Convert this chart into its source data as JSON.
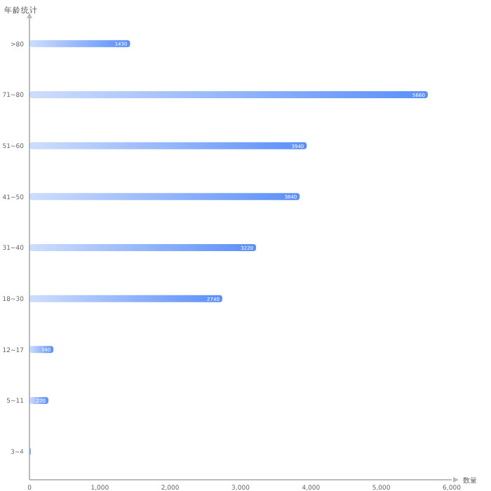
{
  "chart_data": {
    "type": "bar",
    "orientation": "horizontal",
    "ylabel": "年龄统计",
    "xlabel": "数量",
    "categories": [
      ">80",
      "71~80",
      "51~60",
      "41~50",
      "31~40",
      "18~30",
      "12~17",
      "5~11",
      "3~4"
    ],
    "values": [
      1430,
      5660,
      3940,
      3840,
      3220,
      2740,
      340,
      270,
      20
    ],
    "color": "#5b8ff9",
    "data_labels": true,
    "xlim": [
      0,
      6000
    ],
    "xticks": [
      {
        "value": 0,
        "label": "0"
      },
      {
        "value": 1000,
        "label": "1,000"
      },
      {
        "value": 2000,
        "label": "2,000"
      },
      {
        "value": 3000,
        "label": "3,000"
      },
      {
        "value": 4000,
        "label": "4,000"
      },
      {
        "value": 5000,
        "label": "5,000"
      },
      {
        "value": 6000,
        "label": "6,000"
      }
    ]
  }
}
